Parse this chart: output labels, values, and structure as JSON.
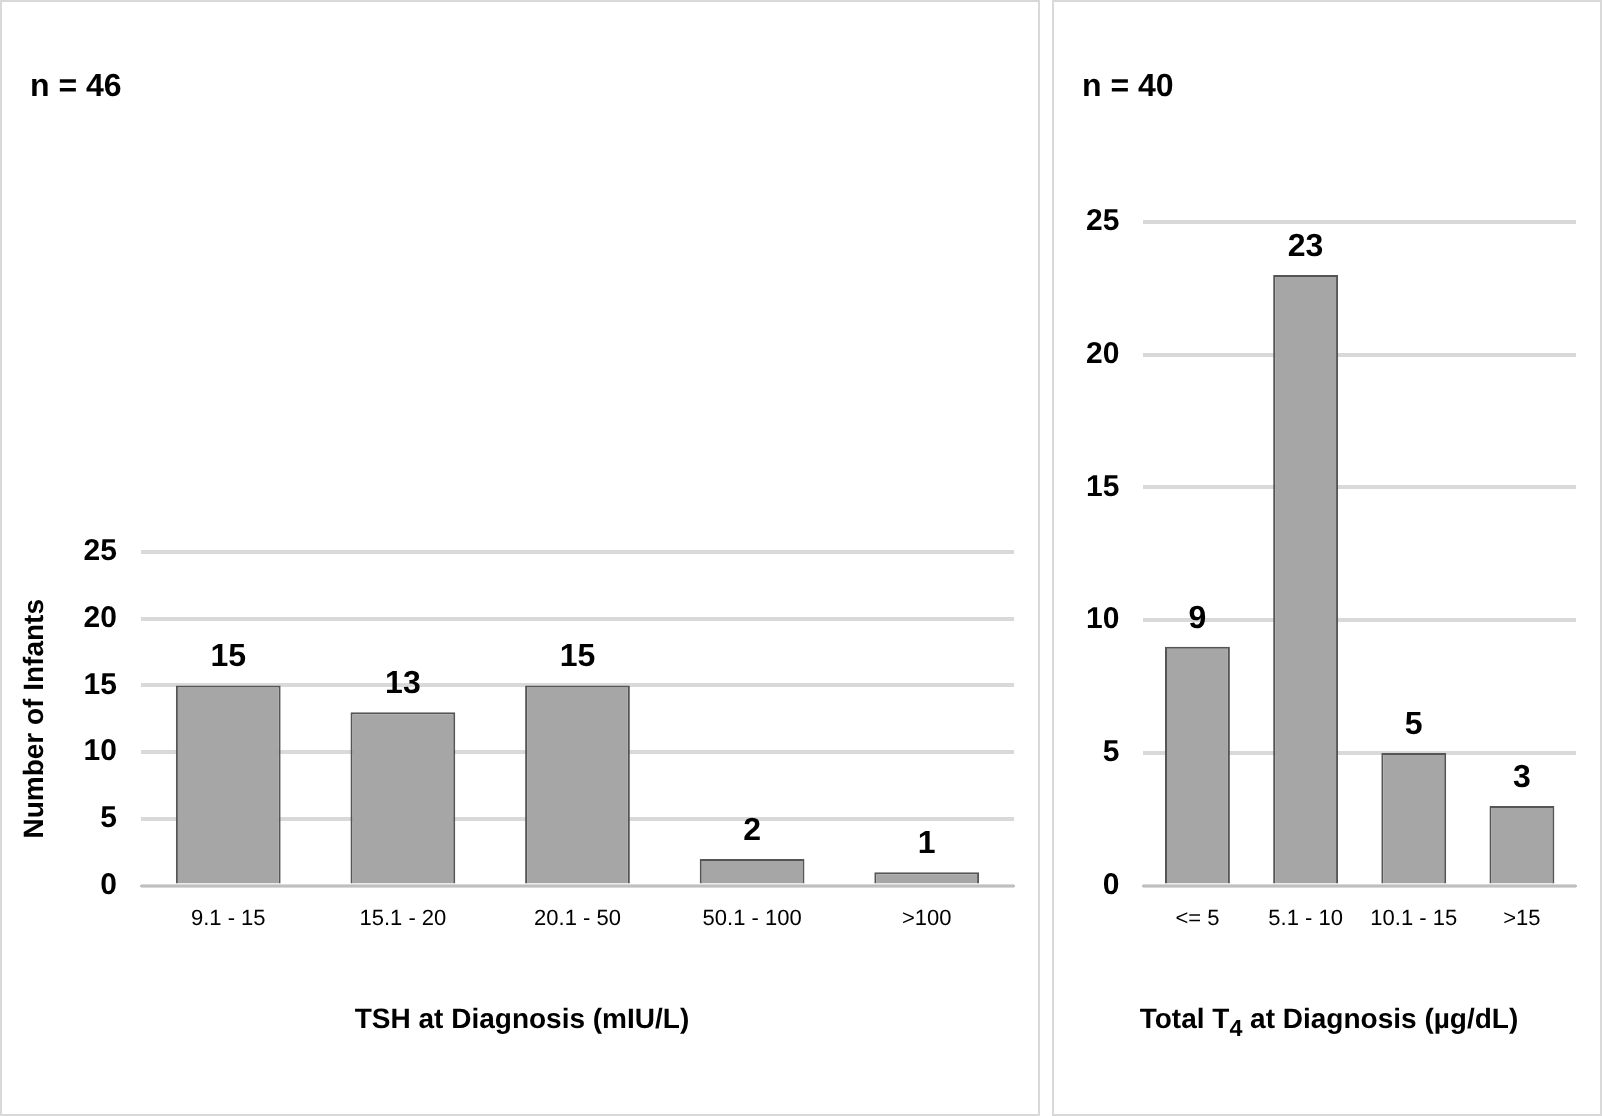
{
  "chart_data": [
    {
      "type": "bar",
      "title": "n = 46",
      "xlabel": "TSH at Diagnosis (mIU/L)",
      "ylabel": "Number of Infants",
      "categories": [
        "9.1 - 15",
        "15.1 - 20",
        "20.1 - 50",
        "50.1 - 100",
        ">100"
      ],
      "values": [
        15,
        13,
        15,
        2,
        1
      ],
      "color": "#a6a6a6",
      "ylim": [
        0,
        25
      ],
      "yticks": [
        0,
        5,
        10,
        15,
        20,
        25
      ],
      "grid": "y",
      "data_labels": true
    },
    {
      "type": "bar",
      "title": "n = 40",
      "xlabel": "Total T$_{4}$ at Diagnosis (µg/dL)",
      "categories": [
        "<= 5",
        "5.1 - 10",
        "10.1 - 15",
        ">15"
      ],
      "values": [
        9,
        23,
        5,
        3
      ],
      "color": "#a6a6a6",
      "ylim": [
        0,
        25
      ],
      "yticks": [
        0,
        5,
        10,
        15,
        20,
        25
      ],
      "grid": "y",
      "data_labels": true
    }
  ]
}
